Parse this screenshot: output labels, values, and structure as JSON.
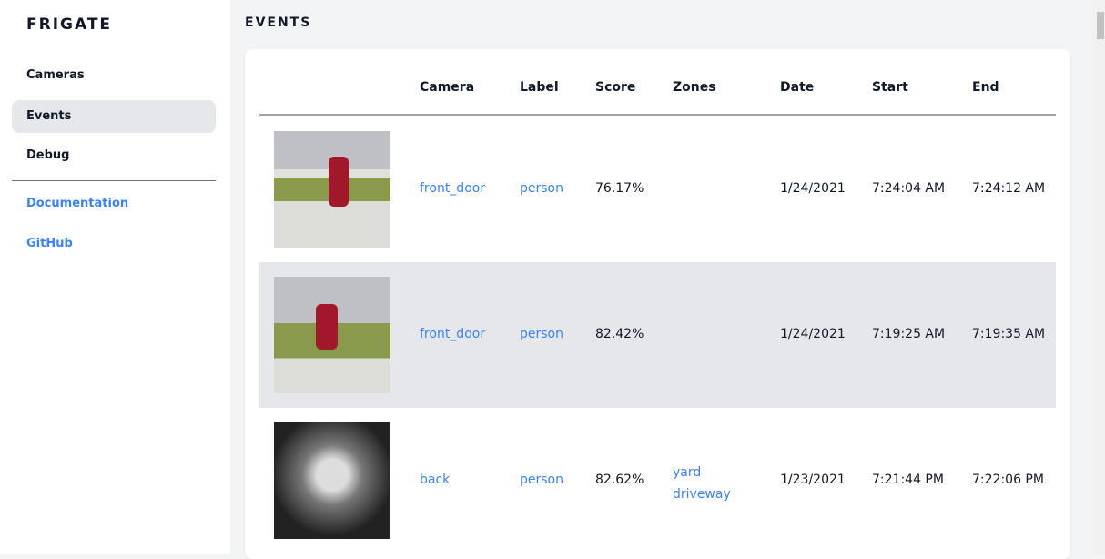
{
  "sidebar": {
    "brand": "FRIGATE",
    "items": [
      {
        "label": "Cameras"
      },
      {
        "label": "Events"
      },
      {
        "label": "Debug"
      }
    ],
    "links": [
      {
        "label": "Documentation"
      },
      {
        "label": "GitHub"
      }
    ]
  },
  "page": {
    "title": "EVENTS"
  },
  "table": {
    "headers": [
      "Camera",
      "Label",
      "Score",
      "Zones",
      "Date",
      "Start",
      "End"
    ],
    "rows": [
      {
        "camera": "front_door",
        "label": "person",
        "score": "76.17%",
        "zones": [
          "",
          ""
        ],
        "date": "1/24/2021",
        "start": "7:24:04 AM",
        "end": "7:24:12 AM"
      },
      {
        "camera": "front_door",
        "label": "person",
        "score": "82.42%",
        "zones": [
          "",
          ""
        ],
        "date": "1/24/2021",
        "start": "7:19:25 AM",
        "end": "7:19:35 AM"
      },
      {
        "camera": "back",
        "label": "person",
        "score": "82.62%",
        "zones": [
          "yard",
          "driveway"
        ],
        "date": "1/23/2021",
        "start": "7:21:44 PM",
        "end": "7:22:06 PM"
      }
    ]
  },
  "colors": {
    "accent": "#3b82f6",
    "active": "#e5e7eb"
  }
}
